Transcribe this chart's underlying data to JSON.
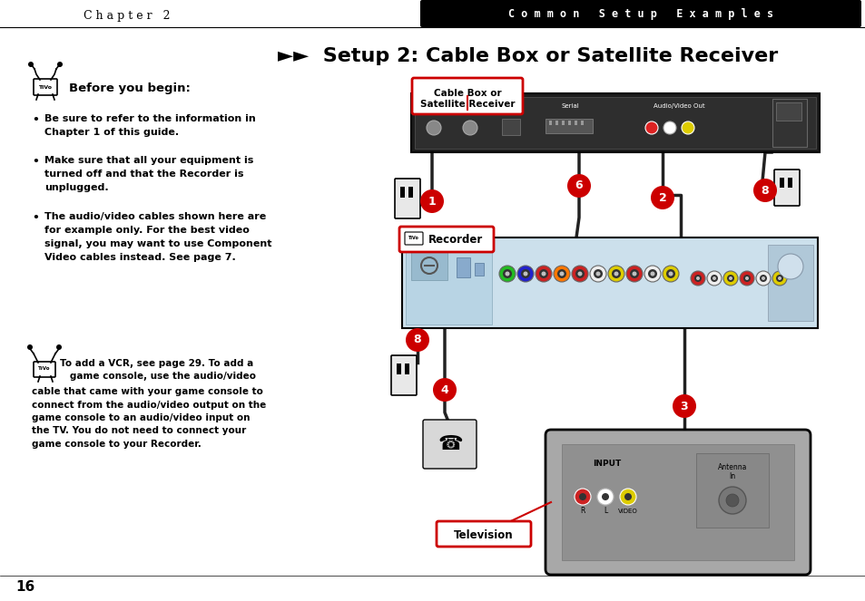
{
  "page_bg": "#ffffff",
  "header_bar_color": "#000000",
  "header_left_text": "C h a p t e r   2",
  "header_right_text": "C o m m o n   S e t u p   E x a m p l e s",
  "title": "►►  Setup 2: Cable Box or Satellite Receiver",
  "page_number": "16",
  "before_begin_text": "Before you begin:",
  "bullet1_line1": "Be sure to refer to the information in",
  "bullet1_line2": "Chapter 1 of this guide.",
  "bullet2_line1": "Make sure that all your equipment is",
  "bullet2_line2": "turned off and that the Recorder is",
  "bullet2_line3": "unplugged.",
  "bullet3_line1": "The audio/video cables shown here are",
  "bullet3_line2": "for example only. For the best video",
  "bullet3_line3": "signal, you may want to use Component",
  "bullet3_line4": "Video cables instead. See page 7.",
  "note_line1": "To add a VCR, see page 29. To add a",
  "note_line2": "   game console, use the audio/video",
  "note_line3": "cable that came with your game console to",
  "note_line4": "connect from the audio/video output on the",
  "note_line5": "game console to an audio/video input on",
  "note_line6": "the TV. You do not need to connect your",
  "note_line7": "game console to your Recorder.",
  "label_cable_box": "Cable Box or\nSatellite Receiver",
  "label_recorder": "Recorder",
  "label_television": "Television",
  "callout_red": "#cc0000",
  "recorder_bg": "#cce0ec",
  "tv_bg": "#a8a8a8",
  "cable_box_dark": "#1c1c1c",
  "wire_color": "#222222"
}
